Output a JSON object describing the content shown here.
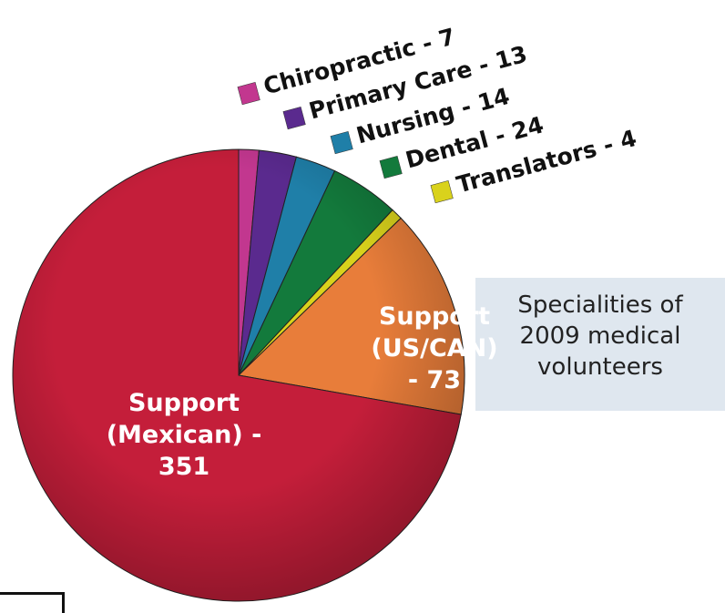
{
  "chart_data": {
    "type": "pie",
    "title": "Specialities of 2009 medical volunteers",
    "values": [
      7,
      13,
      14,
      24,
      4,
      73,
      351
    ],
    "value_labels": [
      "Chiropractic - 7",
      "Primary Care - 13",
      "Nursing - 14",
      "Dental - 24",
      "Translators - 4",
      "Support (US/CAN) - 73",
      "Support (Mexican) - 351"
    ],
    "colors": [
      "#c2378f",
      "#5a2a8e",
      "#1f7fa8",
      "#137a3c",
      "#d9d21c",
      "#e87d3a",
      "#c41e3a"
    ]
  }
}
